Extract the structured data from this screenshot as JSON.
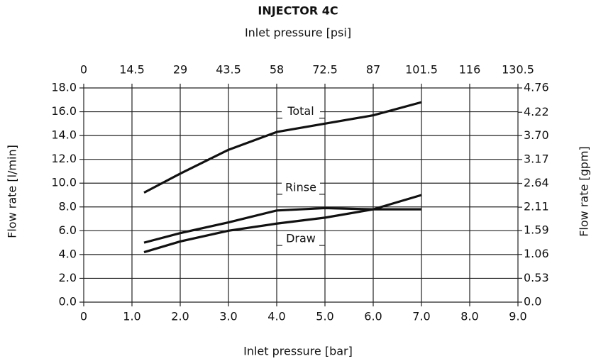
{
  "chart_data": {
    "type": "line",
    "title": "INJECTOR 4C",
    "xlabel": "Inlet pressure [bar]",
    "x2label": "Inlet pressure [psi]",
    "ylabel": "Flow rate [l/min]",
    "y2label": "Flow rate [gpm]",
    "x": [
      1.25,
      2,
      3,
      4,
      5,
      6,
      7
    ],
    "series": [
      {
        "name": "Total",
        "color": "#111111",
        "values": [
          9.2,
          10.8,
          12.8,
          14.3,
          15.0,
          15.7,
          16.8
        ]
      },
      {
        "name": "Rinse",
        "color": "#111111",
        "values": [
          5.0,
          5.8,
          6.7,
          7.7,
          7.9,
          7.8,
          7.8
        ]
      },
      {
        "name": "Draw",
        "color": "#111111",
        "values": [
          4.2,
          5.1,
          6.0,
          6.6,
          7.1,
          7.8,
          9.0
        ]
      }
    ],
    "xlim": [
      0,
      9
    ],
    "xticks": [
      0,
      {
        "value": 1,
        "label": "1.0"
      },
      {
        "value": 2,
        "label": "2.0"
      },
      {
        "value": 3,
        "label": "3.0"
      },
      {
        "value": 4,
        "label": "4.0"
      },
      {
        "value": 5,
        "label": "5.0"
      },
      {
        "value": 6,
        "label": "6.0"
      },
      {
        "value": 7,
        "label": "7.0"
      },
      {
        "value": 8,
        "label": "8.0"
      },
      {
        "value": 9,
        "label": "9.0"
      }
    ],
    "x2lim": [
      0,
      130.5
    ],
    "x2ticks": [
      0,
      14.5,
      29,
      43.5,
      58,
      72.5,
      87,
      101.5,
      116,
      130.5
    ],
    "ylim": [
      0,
      18
    ],
    "yticks": [
      {
        "value": 0,
        "label": "0.0"
      },
      {
        "value": 2,
        "label": "2.0"
      },
      {
        "value": 4,
        "label": "4.0"
      },
      {
        "value": 6,
        "label": "6.0"
      },
      {
        "value": 8,
        "label": "8.0"
      },
      {
        "value": 10,
        "label": "10.0"
      },
      {
        "value": 12,
        "label": "12.0"
      },
      {
        "value": 14,
        "label": "14.0"
      },
      {
        "value": 16,
        "label": "16.0"
      },
      {
        "value": 18,
        "label": "18.0"
      }
    ],
    "y2lim": [
      0,
      4.76
    ],
    "y2ticks": [
      {
        "value": 0,
        "label": "0.0"
      },
      0.53,
      1.06,
      1.59,
      2.11,
      2.64,
      3.17,
      {
        "value": 3.7,
        "label": "3.70"
      },
      4.22,
      4.76
    ],
    "grid": true
  }
}
